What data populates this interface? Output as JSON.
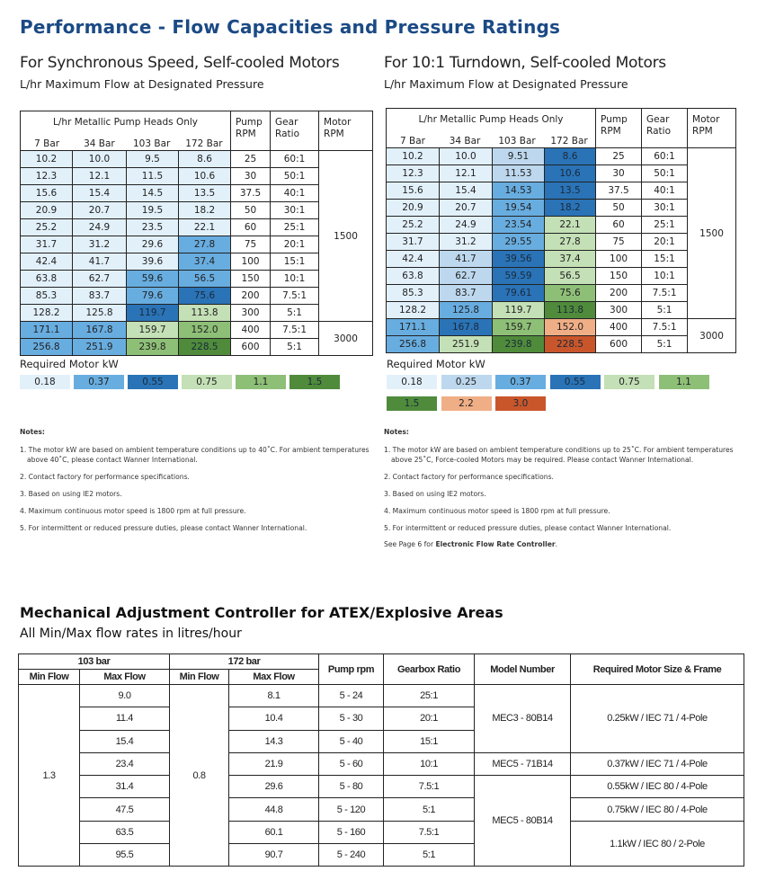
{
  "title": "Performance - Flow Capacities and Pressure Ratings",
  "kw_colors": {
    "0.18": "#e2f0fa",
    "0.25": "#bdd8ee",
    "0.37": "#68ade0",
    "0.55": "#2a73b7",
    "0.75": "#c4e0b6",
    "1.1": "#8ebf77",
    "1.5": "#4f8b3b",
    "2.2": "#f0ae86",
    "3.0": "#c9562b"
  },
  "left": {
    "heading": "For Synchronous Speed, Self-cooled Motors",
    "subheading": "L/hr Maximum Flow at Designated Pressure",
    "flow_header": "L/hr Metallic Pump Heads Only",
    "bars": [
      "7 Bar",
      "34 Bar",
      "103 Bar",
      "172 Bar"
    ],
    "pump_rpm_header": "Pump RPM",
    "gear_header": "Gear Ratio",
    "motor_header": "Motor RPM",
    "rows": [
      {
        "v": [
          "10.2",
          "10.0",
          "9.5",
          "8.6"
        ],
        "kw": [
          "0.18",
          "0.18",
          "0.18",
          "0.18"
        ],
        "rpm": "25",
        "gear": "60:1"
      },
      {
        "v": [
          "12.3",
          "12.1",
          "11.5",
          "10.6"
        ],
        "kw": [
          "0.18",
          "0.18",
          "0.18",
          "0.18"
        ],
        "rpm": "30",
        "gear": "50:1"
      },
      {
        "v": [
          "15.6",
          "15.4",
          "14.5",
          "13.5"
        ],
        "kw": [
          "0.18",
          "0.18",
          "0.18",
          "0.18"
        ],
        "rpm": "37.5",
        "gear": "40:1"
      },
      {
        "v": [
          "20.9",
          "20.7",
          "19.5",
          "18.2"
        ],
        "kw": [
          "0.18",
          "0.18",
          "0.18",
          "0.18"
        ],
        "rpm": "50",
        "gear": "30:1"
      },
      {
        "v": [
          "25.2",
          "24.9",
          "23.5",
          "22.1"
        ],
        "kw": [
          "0.18",
          "0.18",
          "0.18",
          "0.18"
        ],
        "rpm": "60",
        "gear": "25:1"
      },
      {
        "v": [
          "31.7",
          "31.2",
          "29.6",
          "27.8"
        ],
        "kw": [
          "0.18",
          "0.18",
          "0.18",
          "0.37"
        ],
        "rpm": "75",
        "gear": "20:1"
      },
      {
        "v": [
          "42.4",
          "41.7",
          "39.6",
          "37.4"
        ],
        "kw": [
          "0.18",
          "0.18",
          "0.18",
          "0.37"
        ],
        "rpm": "100",
        "gear": "15:1"
      },
      {
        "v": [
          "63.8",
          "62.7",
          "59.6",
          "56.5"
        ],
        "kw": [
          "0.18",
          "0.18",
          "0.37",
          "0.37"
        ],
        "rpm": "150",
        "gear": "10:1"
      },
      {
        "v": [
          "85.3",
          "83.7",
          "79.6",
          "75.6"
        ],
        "kw": [
          "0.18",
          "0.18",
          "0.37",
          "0.55"
        ],
        "rpm": "200",
        "gear": "7.5:1"
      },
      {
        "v": [
          "128.2",
          "125.8",
          "119.7",
          "113.8"
        ],
        "kw": [
          "0.18",
          "0.18",
          "0.55",
          "0.75"
        ],
        "rpm": "300",
        "gear": "5:1"
      },
      {
        "v": [
          "171.1",
          "167.8",
          "159.7",
          "152.0"
        ],
        "kw": [
          "0.37",
          "0.37",
          "0.75",
          "1.1"
        ],
        "rpm": "400",
        "gear": "7.5:1"
      },
      {
        "v": [
          "256.8",
          "251.9",
          "239.8",
          "228.5"
        ],
        "kw": [
          "0.37",
          "0.37",
          "1.1",
          "1.5"
        ],
        "rpm": "600",
        "gear": "5:1"
      }
    ],
    "motor_rpm": [
      {
        "value": "1500",
        "span": 10
      },
      {
        "value": "3000",
        "span": 2
      }
    ],
    "legend_label": "Required Motor kW",
    "legend": [
      "0.18",
      "0.37",
      "0.55",
      "0.75",
      "1.1",
      "1.5"
    ],
    "notes_heading": "Notes:",
    "notes": [
      "1. The motor kW are based on ambient temperature conditions up to 40˚C. For ambient temperatures above 40˚C, please contact Wanner International.",
      "2. Contact factory for performance specifications.",
      "3. Based on using IE2 motors.",
      "4. Maximum continuous motor speed is 1800 rpm at full pressure.",
      "5. For intermittent or reduced pressure duties, please contact Wanner International."
    ]
  },
  "right": {
    "heading": "For 10:1 Turndown, Self-cooled Motors",
    "subheading": "L/hr Maximum Flow at Designated Pressure",
    "flow_header": "L/hr Metallic Pump Heads Only",
    "bars": [
      "7 Bar",
      "34 Bar",
      "103 Bar",
      "172 Bar"
    ],
    "pump_rpm_header": "Pump RPM",
    "gear_header": "Gear Ratio",
    "motor_header": "Motor RPM",
    "rows": [
      {
        "v": [
          "10.2",
          "10.0",
          "9.51",
          "8.6"
        ],
        "kw": [
          "0.18",
          "0.18",
          "0.25",
          "0.55"
        ],
        "rpm": "25",
        "gear": "60:1"
      },
      {
        "v": [
          "12.3",
          "12.1",
          "11.53",
          "10.6"
        ],
        "kw": [
          "0.18",
          "0.18",
          "0.25",
          "0.55"
        ],
        "rpm": "30",
        "gear": "50:1"
      },
      {
        "v": [
          "15.6",
          "15.4",
          "14.53",
          "13.5"
        ],
        "kw": [
          "0.18",
          "0.18",
          "0.37",
          "0.55"
        ],
        "rpm": "37.5",
        "gear": "40:1"
      },
      {
        "v": [
          "20.9",
          "20.7",
          "19.54",
          "18.2"
        ],
        "kw": [
          "0.18",
          "0.18",
          "0.37",
          "0.55"
        ],
        "rpm": "50",
        "gear": "30:1"
      },
      {
        "v": [
          "25.2",
          "24.9",
          "23.54",
          "22.1"
        ],
        "kw": [
          "0.18",
          "0.18",
          "0.37",
          "0.75"
        ],
        "rpm": "60",
        "gear": "25:1"
      },
      {
        "v": [
          "31.7",
          "31.2",
          "29.55",
          "27.8"
        ],
        "kw": [
          "0.18",
          "0.18",
          "0.37",
          "0.75"
        ],
        "rpm": "75",
        "gear": "20:1"
      },
      {
        "v": [
          "42.4",
          "41.7",
          "39.56",
          "37.4"
        ],
        "kw": [
          "0.18",
          "0.25",
          "0.55",
          "0.75"
        ],
        "rpm": "100",
        "gear": "15:1"
      },
      {
        "v": [
          "63.8",
          "62.7",
          "59.59",
          "56.5"
        ],
        "kw": [
          "0.18",
          "0.25",
          "0.55",
          "0.75"
        ],
        "rpm": "150",
        "gear": "10:1"
      },
      {
        "v": [
          "85.3",
          "83.7",
          "79.61",
          "75.6"
        ],
        "kw": [
          "0.18",
          "0.25",
          "0.55",
          "1.1"
        ],
        "rpm": "200",
        "gear": "7.5:1"
      },
      {
        "v": [
          "128.2",
          "125.8",
          "119.7",
          "113.8"
        ],
        "kw": [
          "0.18",
          "0.37",
          "0.75",
          "1.5"
        ],
        "rpm": "300",
        "gear": "5:1"
      },
      {
        "v": [
          "171.1",
          "167.8",
          "159.7",
          "152.0"
        ],
        "kw": [
          "0.37",
          "0.55",
          "1.1",
          "2.2"
        ],
        "rpm": "400",
        "gear": "7.5:1"
      },
      {
        "v": [
          "256.8",
          "251.9",
          "239.8",
          "228.5"
        ],
        "kw": [
          "0.37",
          "0.75",
          "1.5",
          "3.0"
        ],
        "rpm": "600",
        "gear": "5:1"
      }
    ],
    "motor_rpm": [
      {
        "value": "1500",
        "span": 10
      },
      {
        "value": "3000",
        "span": 2
      }
    ],
    "legend_label": "Required Motor kW",
    "legend": [
      "0.18",
      "0.25",
      "0.37",
      "0.55",
      "0.75",
      "1.1",
      "1.5",
      "2.2",
      "3.0"
    ],
    "notes_heading": "Notes:",
    "notes": [
      "1. The motor kW are based on ambient temperature conditions up to 25˚C. For ambient temperatures above 25˚C, Force-cooled Motors may be required. Please contact Wanner International.",
      "2. Contact factory for performance specifications.",
      "3. Based on using IE2 motors.",
      "4. Maximum continuous motor speed is 1800 rpm at full pressure.",
      "5. For intermittent or reduced pressure duties, please contact Wanner International."
    ],
    "see_page_prefix": "See Page 6 for ",
    "see_page_link": "Electronic Flow Rate Controller",
    "see_page_suffix": "."
  },
  "mech": {
    "title": "Mechanical Adjustment Controller for ATEX/Explosive Areas",
    "subtitle": "All Min/Max flow rates in litres/hour",
    "headers": {
      "bar103": "103 bar",
      "bar172": "172 bar",
      "min": "Min Flow",
      "max": "Max Flow",
      "pump": "Pump rpm",
      "gear": "Gearbox Ratio",
      "model": "Model Number",
      "motor": "Required Motor Size & Frame"
    },
    "min103": "1.3",
    "min172": "0.8",
    "rows": [
      {
        "max103": "9.0",
        "max172": "8.1",
        "rpm": "5 - 24",
        "gear": "25:1"
      },
      {
        "max103": "11.4",
        "max172": "10.4",
        "rpm": "5 - 30",
        "gear": "20:1"
      },
      {
        "max103": "15.4",
        "max172": "14.3",
        "rpm": "5 - 40",
        "gear": "15:1"
      },
      {
        "max103": "23.4",
        "max172": "21.9",
        "rpm": "5 - 60",
        "gear": "10:1"
      },
      {
        "max103": "31.4",
        "max172": "29.6",
        "rpm": "5 - 80",
        "gear": "7.5:1"
      },
      {
        "max103": "47.5",
        "max172": "44.8",
        "rpm": "5 - 120",
        "gear": "5:1"
      },
      {
        "max103": "63.5",
        "max172": "60.1",
        "rpm": "5 - 160",
        "gear": "7.5:1"
      },
      {
        "max103": "95.5",
        "max172": "90.7",
        "rpm": "5 - 240",
        "gear": "5:1"
      }
    ],
    "models": [
      {
        "value": "MEC3 - 80B14",
        "span": 3
      },
      {
        "value": "MEC5 - 71B14",
        "span": 1
      },
      {
        "value": "MEC5 - 80B14",
        "span": 4
      }
    ],
    "motors": [
      {
        "value": "0.25kW / IEC 71 / 4-Pole",
        "span": 3
      },
      {
        "value": "0.37kW / IEC 71 / 4-Pole",
        "span": 1
      },
      {
        "value": "0.55kW / IEC 80 / 4-Pole",
        "span": 1
      },
      {
        "value": "0.75kW / IEC 80 / 4-Pole",
        "span": 1
      },
      {
        "value": "1.1kW / IEC 80 / 2-Pole",
        "span": 2
      }
    ]
  }
}
